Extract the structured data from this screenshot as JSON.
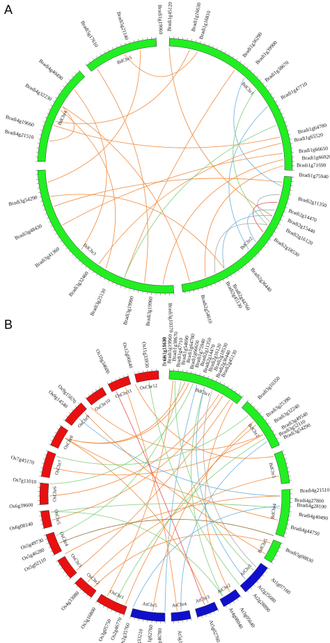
{
  "panels": [
    {
      "id": "A",
      "label": "A",
      "chromosomes": [
        {
          "name": "BdChr1",
          "color": "#22ee22"
        },
        {
          "name": "BdChr2",
          "color": "#22ee22"
        },
        {
          "name": "BdChr3",
          "color": "#22ee22"
        },
        {
          "name": "BdChr4",
          "color": "#22ee22"
        },
        {
          "name": "BdChr5",
          "color": "#22ee22"
        }
      ],
      "genes": [
        "Bradi1g19960",
        "Bradi1g45120",
        "Bradi1g16630",
        "Bradi1g16810",
        "Bradi1g36290",
        "Bradi1g39900",
        "Bradi1g38670",
        "Bradi1g47710",
        "Bradi1g64780",
        "Bradi1g65520",
        "Bradi1g66650",
        "Bradi1g66920",
        "Bradi1g71690",
        "Bradi1g75940",
        "Bradi2g11350",
        "Bradi2g14470",
        "Bradi2g15440",
        "Bradi2g16120",
        "Bradi2g18530",
        "Bradi2g36440",
        "Bradi2g44760",
        "Bradi2g45130",
        "Bradi2g54610",
        "Bradi3g10370",
        "Bradi3g19960",
        "Bradi3g19900",
        "Bradi3g25130",
        "Bradi3g32460",
        "Bradi3g41360",
        "Bradi3g48430",
        "Bradi3g54290",
        "Bradi4g21510",
        "Bradi4g19660",
        "Bradi4g32230",
        "Bradi4g40490",
        "Bradi5g17610",
        "Bradi5g21140"
      ],
      "link_colors": [
        "#f08a3c",
        "#6ab0de",
        "#7ccf7a",
        "#a8a8a8",
        "#e05050"
      ]
    },
    {
      "id": "B",
      "label": "B",
      "chromosomes": [
        {
          "name": "BdChr1",
          "color": "#22ee22"
        },
        {
          "name": "BdChr2",
          "color": "#22ee22"
        },
        {
          "name": "BdChr3",
          "color": "#22ee22"
        },
        {
          "name": "BdChr4",
          "color": "#22ee22"
        },
        {
          "name": "BdChr5",
          "color": "#22ee22"
        },
        {
          "name": "AtChr1",
          "color": "#1010cc"
        },
        {
          "name": "AtChr2",
          "color": "#1010cc"
        },
        {
          "name": "AtChr3",
          "color": "#1010cc"
        },
        {
          "name": "AtChr4",
          "color": "#1010cc"
        },
        {
          "name": "AtChr5",
          "color": "#1010cc"
        },
        {
          "name": "OsChr1",
          "color": "#e81010"
        },
        {
          "name": "OsChr2",
          "color": "#e81010"
        },
        {
          "name": "OsChr3",
          "color": "#e81010"
        },
        {
          "name": "OsChr4",
          "color": "#e81010"
        },
        {
          "name": "OsChr5",
          "color": "#e81010"
        },
        {
          "name": "OsChr6",
          "color": "#e81010"
        },
        {
          "name": "OsChr7",
          "color": "#e81010"
        },
        {
          "name": "OsChr8",
          "color": "#e81010"
        },
        {
          "name": "OsChr9",
          "color": "#e81010"
        },
        {
          "name": "OsChr10",
          "color": "#e81010"
        },
        {
          "name": "OsChr11",
          "color": "#e81010"
        },
        {
          "name": "OsChr12",
          "color": "#e81010"
        }
      ],
      "genes": [
        "Bradi1g16630",
        "Bradi1g19960",
        "Bradi1g38670",
        "Bradi1g47710",
        "Bradi1g54690",
        "Bradi1g64780",
        "Bradi1g66650",
        "Bradi1g75940",
        "Bradi2g11350",
        "Bradi2g14470",
        "Bradi2g16120",
        "Bradi2g18530",
        "Bradi2g36440",
        "Bradi2g45130",
        "Bradi3g10350",
        "Bradi3g25390",
        "Bradi3g32240",
        "Bradi3g49540",
        "Bradi3g52110",
        "Bradi3g54290",
        "Bradi4g21510",
        "Bradi4g27800",
        "Bradi4g28100",
        "Bradi4g40490",
        "Bradi4g44750",
        "Bradi5g08830",
        "At1g07160",
        "At2g25680",
        "At2g28890",
        "At3g05640",
        "At4g08040",
        "At5g02760",
        "At5g10740",
        "Os11g33930",
        "Os12g06640",
        "Os10g34600",
        "Os9g15670",
        "Os9g14540",
        "Os7g45170",
        "Os7g11010",
        "Os6g39600",
        "Os6g08140",
        "Os5g49730",
        "Os5g46280",
        "Os5g02110",
        "Os4g33080",
        "Os3g16800",
        "Os3g05750",
        "Os2g46770",
        "Os2g35760",
        "Os2g33210",
        "Os1g62760",
        "Os1g46780",
        "Os1g13110"
      ],
      "link_colors": [
        "#f08a3c",
        "#7ccf7a",
        "#6ab0de",
        "#a8a8a8",
        "#e05050",
        "#8a6a2a"
      ]
    }
  ]
}
